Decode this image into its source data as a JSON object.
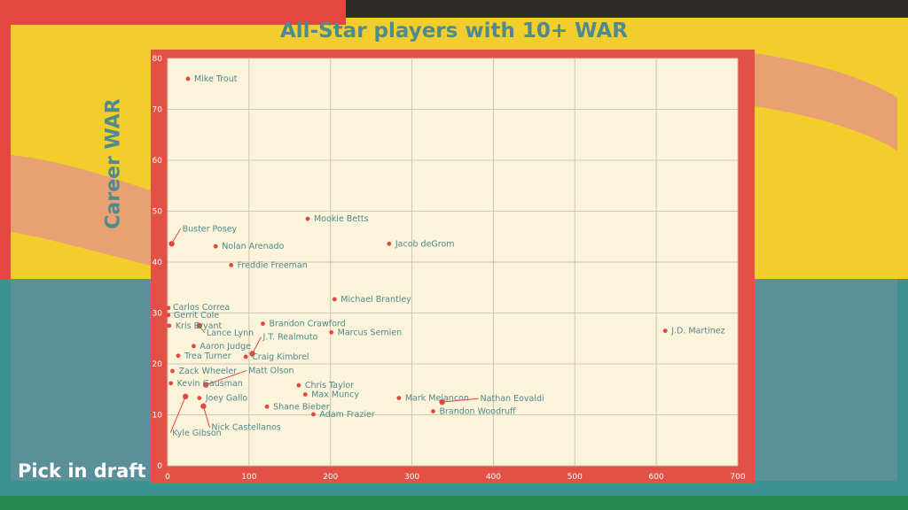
{
  "chart_data": {
    "type": "scatter",
    "title": "All-Star players with 10+ WAR",
    "xlabel": "Pick in draft",
    "ylabel": "Career WAR",
    "xlim": [
      0,
      700
    ],
    "ylim": [
      0,
      80
    ],
    "xticks": [
      0,
      100,
      200,
      300,
      400,
      500,
      600,
      700
    ],
    "yticks": [
      0,
      10,
      20,
      30,
      40,
      50,
      60,
      70,
      80
    ],
    "grid": true,
    "points": [
      {
        "name": "Mike Trout",
        "x": 25,
        "y": 76
      },
      {
        "name": "Mookie Betts",
        "x": 172,
        "y": 48.5
      },
      {
        "name": "Buster Posey",
        "x": 5,
        "y": 43.6
      },
      {
        "name": "Jacob deGrom",
        "x": 272,
        "y": 43.6
      },
      {
        "name": "Nolan Arenado",
        "x": 59,
        "y": 43.1
      },
      {
        "name": "Freddie Freeman",
        "x": 78,
        "y": 39.4
      },
      {
        "name": "Michael Brantley",
        "x": 205,
        "y": 32.7
      },
      {
        "name": "Carlos Correa",
        "x": 1,
        "y": 31
      },
      {
        "name": "Gerrit Cole",
        "x": 1,
        "y": 29.6
      },
      {
        "name": "Brandon Crawford",
        "x": 117,
        "y": 27.9
      },
      {
        "name": "Kris Bryant",
        "x": 2,
        "y": 27.5
      },
      {
        "name": "Lance Lynn",
        "x": 39,
        "y": 27.5
      },
      {
        "name": "Marcus Semien",
        "x": 201,
        "y": 26.2
      },
      {
        "name": "J.D. Martinez",
        "x": 611,
        "y": 26.5
      },
      {
        "name": "Aaron Judge",
        "x": 32,
        "y": 23.5
      },
      {
        "name": "J.T. Realmuto",
        "x": 104,
        "y": 22
      },
      {
        "name": "Trea Turner",
        "x": 13,
        "y": 21.6
      },
      {
        "name": "Craig Kimbrel",
        "x": 96,
        "y": 21.4
      },
      {
        "name": "Zack Wheeler",
        "x": 6,
        "y": 18.6
      },
      {
        "name": "Matt Olson",
        "x": 47,
        "y": 15.9
      },
      {
        "name": "Kevin Gausman",
        "x": 4,
        "y": 16.2
      },
      {
        "name": "Chris Taylor",
        "x": 161,
        "y": 15.8
      },
      {
        "name": "Max Muncy",
        "x": 169,
        "y": 14
      },
      {
        "name": "Joey Gallo",
        "x": 39,
        "y": 13.3
      },
      {
        "name": "Kyle Gibson",
        "x": 22,
        "y": 13.6
      },
      {
        "name": "Mark Melancon",
        "x": 284,
        "y": 13.3
      },
      {
        "name": "Nathan Eovaldi",
        "x": 337,
        "y": 12.5
      },
      {
        "name": "Nick Castellanos",
        "x": 44,
        "y": 11.7
      },
      {
        "name": "Shane Bieber",
        "x": 122,
        "y": 11.6
      },
      {
        "name": "Brandon Woodruff",
        "x": 326,
        "y": 10.7
      },
      {
        "name": "Adam Frazier",
        "x": 179,
        "y": 10.1
      }
    ]
  }
}
